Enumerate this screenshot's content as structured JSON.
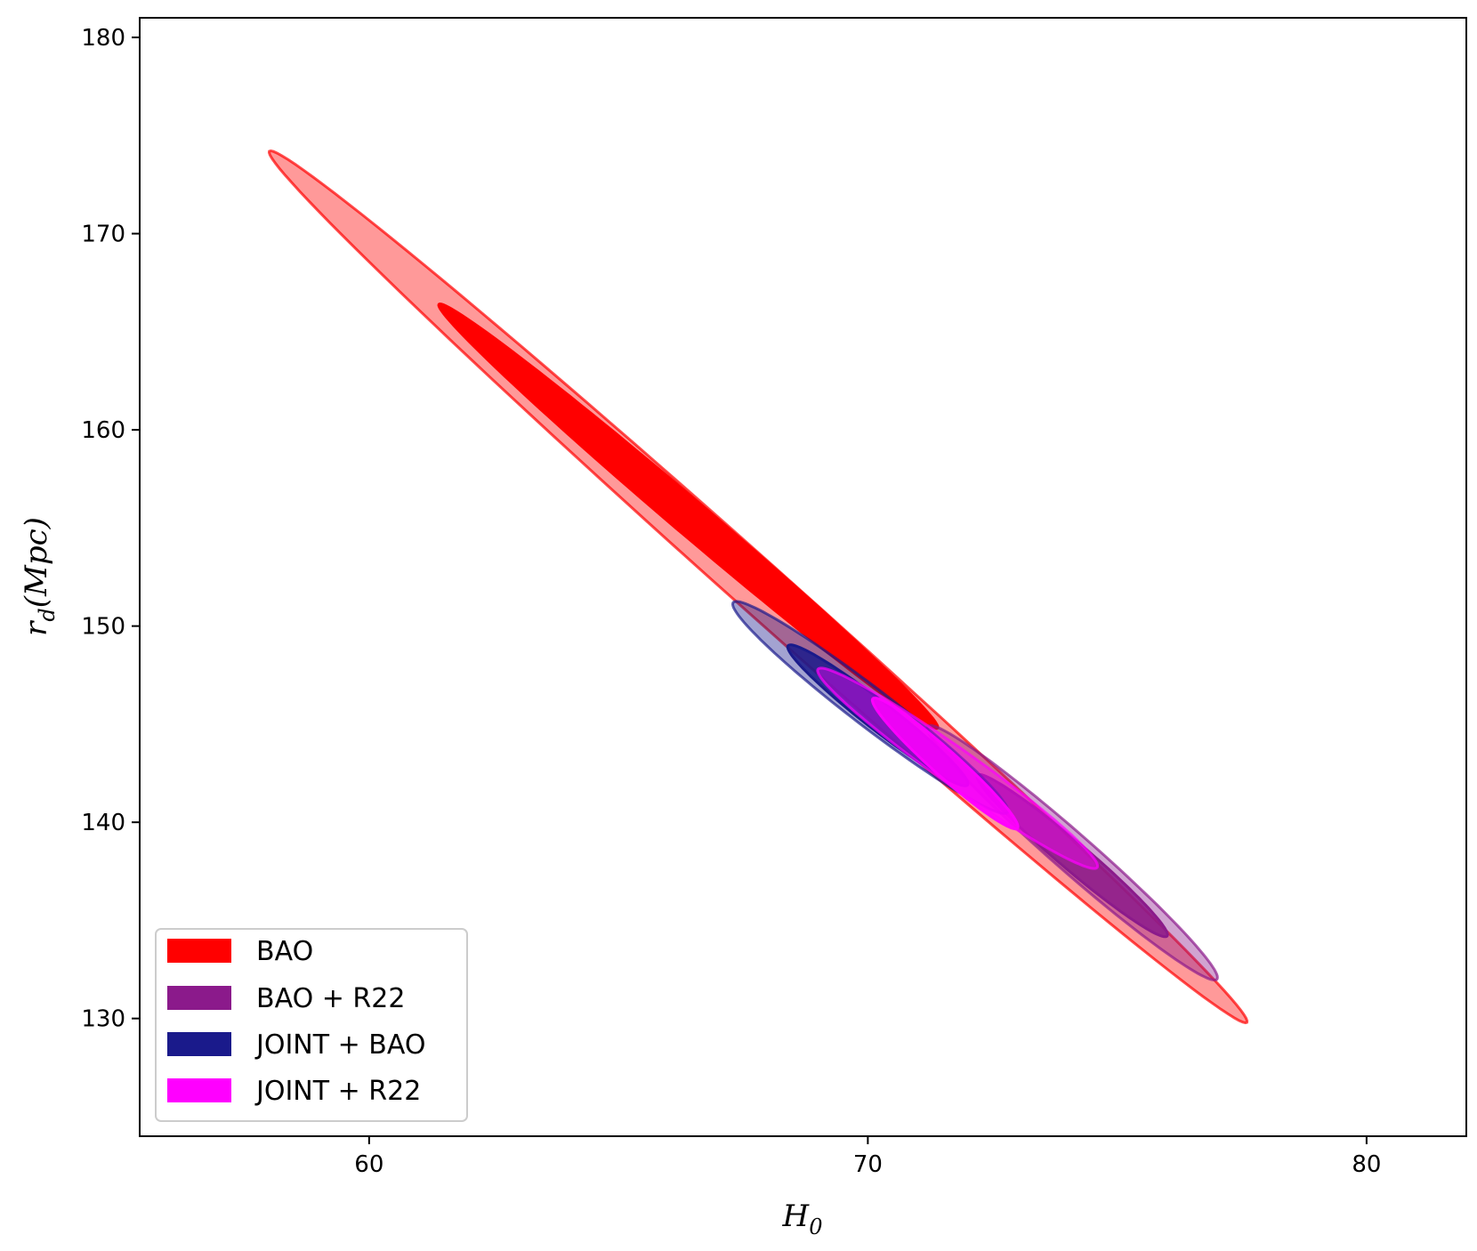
{
  "chart_data": {
    "type": "contour",
    "title": "",
    "xlabel": {
      "main": "H",
      "sub": "0"
    },
    "ylabel": {
      "main": "r",
      "sub": "d",
      "rest": "(Mpc)"
    },
    "xlim": [
      55.4,
      82
    ],
    "ylim": [
      124,
      181
    ],
    "xticks": [
      60,
      70,
      80
    ],
    "yticks": [
      130,
      140,
      150,
      160,
      170,
      180
    ],
    "legend_position": "lower-left",
    "series": [
      {
        "name": "BAO",
        "color": "#ff0000",
        "contours": [
          {
            "level": "2sigma",
            "opacity": 0.4,
            "endpoints": [
              [
                58.0,
                174.2
              ],
              [
                77.6,
                129.8
              ]
            ],
            "half_width": 0.48
          },
          {
            "level": "1sigma",
            "opacity": 1.0,
            "endpoints": [
              [
                61.4,
                166.4
              ],
              [
                71.4,
                144.8
              ]
            ],
            "half_width": 0.32
          }
        ]
      },
      {
        "name": "BAO + R22",
        "color": "#8b1a8b",
        "contours": [
          {
            "level": "2sigma",
            "opacity": 0.4,
            "endpoints": [
              [
                71.2,
                144.9
              ],
              [
                77.0,
                132.0
              ]
            ],
            "half_width": 0.36
          },
          {
            "level": "1sigma",
            "opacity": 0.85,
            "endpoints": [
              [
                72.2,
                142.4
              ],
              [
                76.0,
                134.2
              ]
            ],
            "half_width": 0.26
          }
        ]
      },
      {
        "name": "JOINT + BAO",
        "color": "#1a1a8b",
        "contours": [
          {
            "level": "2sigma",
            "opacity": 0.4,
            "endpoints": [
              [
                67.3,
                151.2
              ],
              [
                72.8,
                140.5
              ]
            ],
            "half_width": 0.36
          },
          {
            "level": "1sigma",
            "opacity": 0.85,
            "endpoints": [
              [
                68.4,
                149.0
              ],
              [
                72.0,
                141.9
              ]
            ],
            "half_width": 0.26
          }
        ]
      },
      {
        "name": "JOINT + R22",
        "color": "#ff00ff",
        "contours": [
          {
            "level": "2sigma",
            "opacity": 0.4,
            "endpoints": [
              [
                69.0,
                147.8
              ],
              [
                74.6,
                137.7
              ]
            ],
            "half_width": 0.34
          },
          {
            "level": "1sigma",
            "opacity": 0.85,
            "endpoints": [
              [
                70.1,
                146.3
              ],
              [
                73.0,
                139.7
              ]
            ],
            "half_width": 0.24
          }
        ]
      }
    ]
  }
}
